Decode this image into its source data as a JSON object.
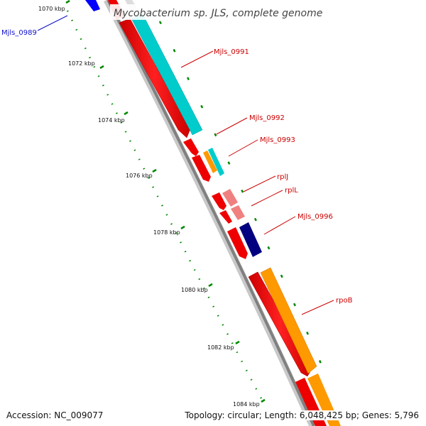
{
  "title": "Mycobacterium sp. JLS, complete genome",
  "footer": {
    "accession": "Accession: NC_009077",
    "stats": "Topology: circular; Length: 6,048,425 bp; Genes: 5,796"
  },
  "ticks": {
    "kbp_1070": "1070 kbp",
    "kbp_1072": "1072 kbp",
    "kbp_1074": "1074 kbp",
    "kbp_1076": "1076 kbp",
    "kbp_1078": "1078 kbp",
    "kbp_1080": "1080 kbp",
    "kbp_1082": "1082 kbp",
    "kbp_1084": "1084 kbp"
  },
  "genes": {
    "mjls_0989": "Mjls_0989",
    "mjls_0991": "Mjls_0991",
    "mjls_0992": "Mjls_0992",
    "mjls_0993": "Mjls_0993",
    "rplJ": "rplJ",
    "rplL": "rplL",
    "mjls_0996": "Mjls_0996",
    "rpoB": "rpoB"
  },
  "colors": {
    "cds_strand": "#ff0000",
    "cds_light": "#f08080",
    "cyan": "#00cccc",
    "orange": "#ff9900",
    "navy": "#000080",
    "blue": "#0000ff",
    "backbone": "#888888",
    "tick": "#009900"
  }
}
